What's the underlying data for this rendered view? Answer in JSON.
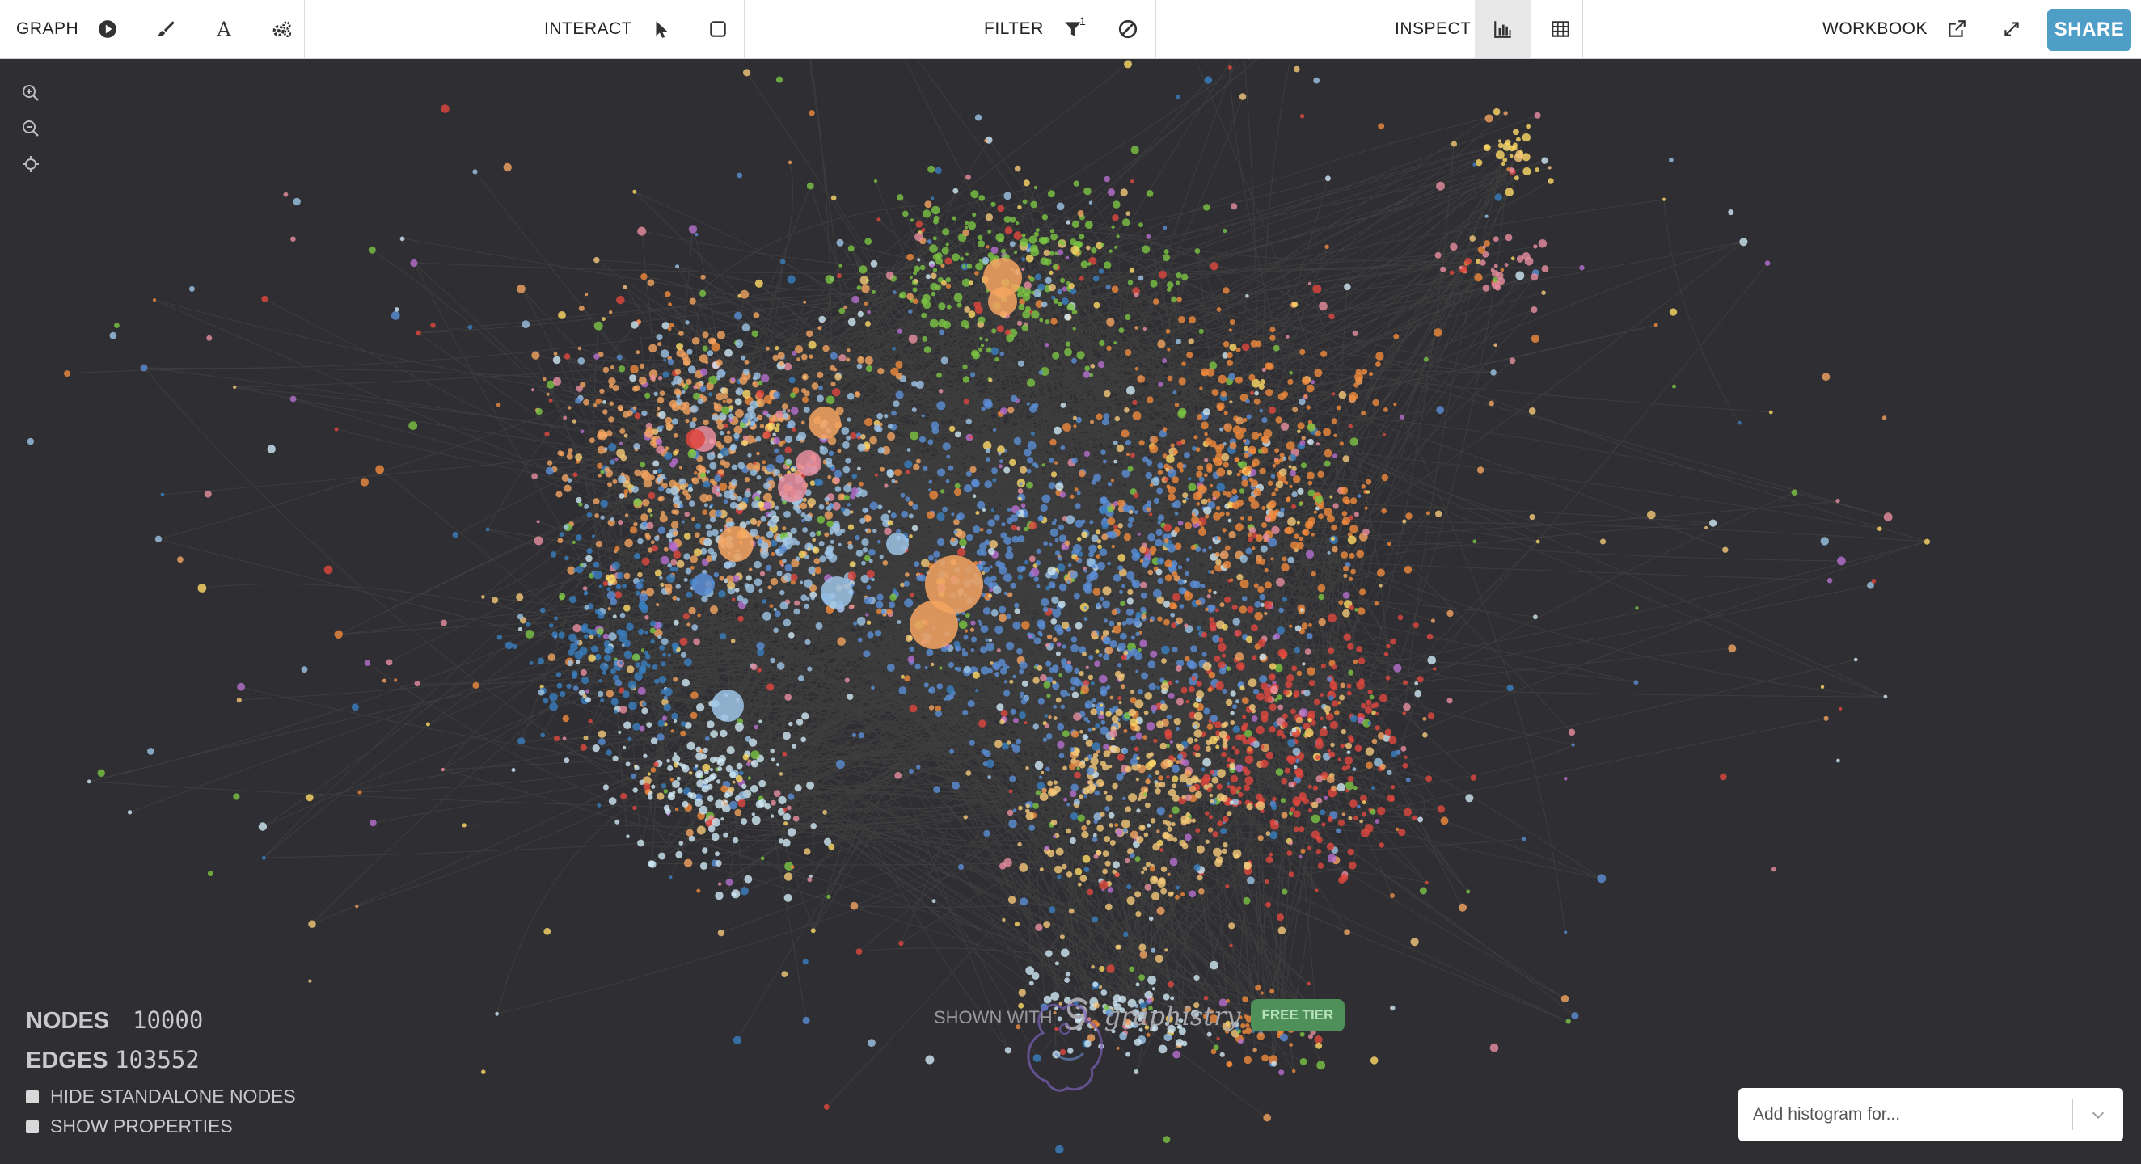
{
  "toolbar": {
    "graph_label": "GRAPH",
    "interact_label": "INTERACT",
    "filter_label": "FILTER",
    "filter_badge": "1",
    "inspect_label": "INSPECT",
    "workbook_label": "WORKBOOK",
    "share_label": "SHARE",
    "icons": [
      "play-icon",
      "brush-icon",
      "text-a-icon",
      "gears-icon",
      "pointer-icon",
      "select-box-icon",
      "filter-icon",
      "exclude-icon",
      "histogram-icon",
      "table-icon",
      "external-link-icon",
      "fullscreen-icon"
    ]
  },
  "canvas": {
    "background": "#2f2f33",
    "zoom_icons": [
      "zoom-in-icon",
      "zoom-out-icon",
      "center-icon"
    ],
    "palette": [
      "#f4a460",
      "#7cc443",
      "#5b8fd6",
      "#e0473f",
      "#9ec4e6",
      "#f5c979",
      "#e98fa0",
      "#b66fd0",
      "#ffd966",
      "#cfe8f5",
      "#f08a3c",
      "#3a7fc1"
    ]
  },
  "stats": {
    "nodes_label": "NODES",
    "nodes_value": "10000",
    "edges_label": "EDGES",
    "edges_value": "103552",
    "hide_standalone_label": "HIDE STANDALONE NODES",
    "show_properties_label": "SHOW PROPERTIES"
  },
  "watermark": {
    "shown_with": "SHOWN WITH",
    "brand": "graphistry",
    "free_tier": "FREE TIER"
  },
  "histogram": {
    "placeholder": "Add histogram for..."
  }
}
